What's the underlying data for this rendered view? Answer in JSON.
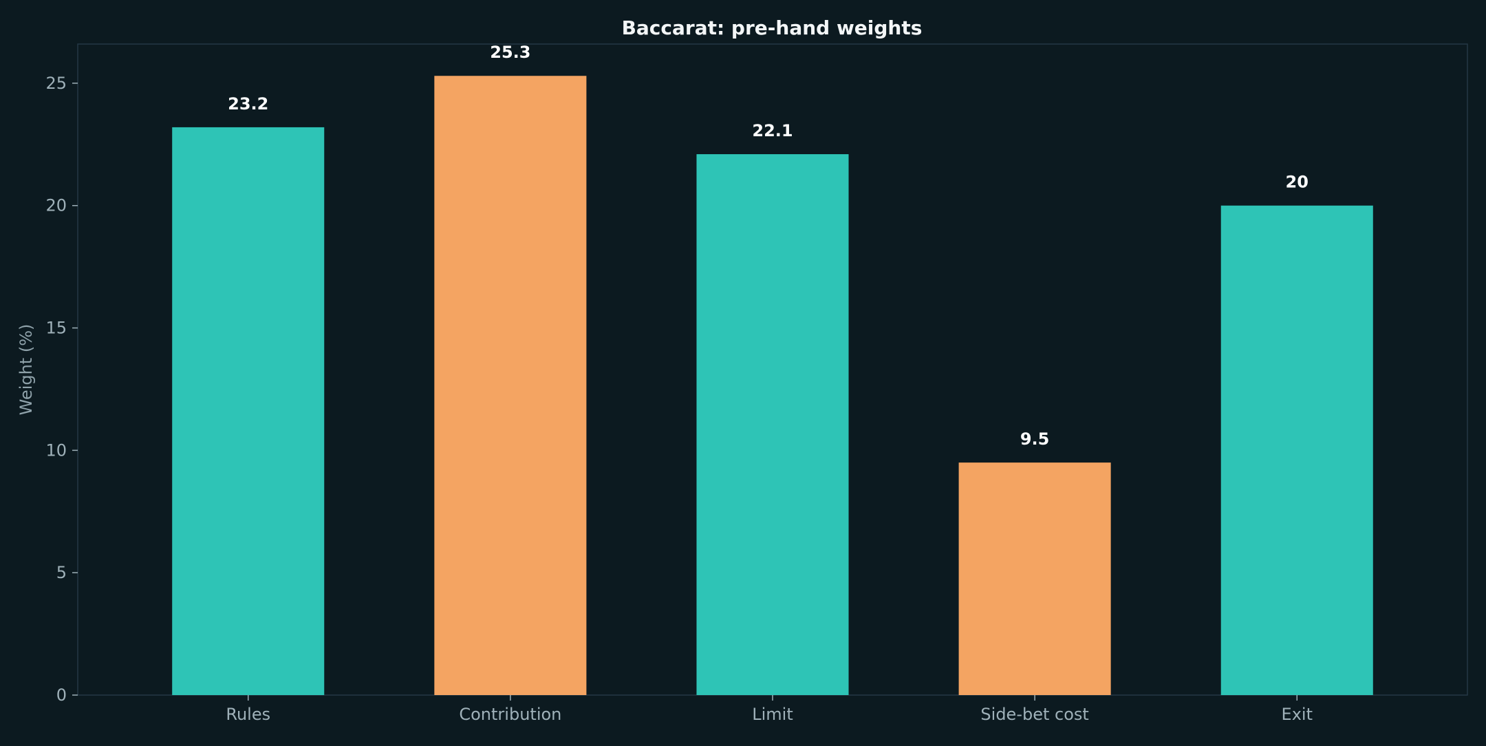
{
  "chart_data": {
    "type": "bar",
    "title": "Baccarat: pre-hand weights",
    "xlabel": "",
    "ylabel": "Weight (%)",
    "categories": [
      "Rules",
      "Contribution",
      "Limit",
      "Side-bet cost",
      "Exit"
    ],
    "values": [
      23.2,
      25.3,
      22.1,
      9.5,
      20
    ],
    "value_labels": [
      "23.2",
      "25.3",
      "22.1",
      "9.5",
      "20"
    ],
    "ylim": [
      0,
      26.6
    ],
    "yticks": [
      0,
      5,
      10,
      15,
      20,
      25
    ],
    "grid": false,
    "legend": "none",
    "bar_colors": [
      "#2ec4b6",
      "#f4a462",
      "#2ec4b6",
      "#f4a462",
      "#2ec4b6"
    ]
  },
  "colors": {
    "background": "#0c1a20",
    "plot_border": "#243845",
    "title_text": "#f3f6f7",
    "tick_text": "#9fb1b9",
    "axis_label_text": "#8fa2aa",
    "data_label_text": "#ffffff",
    "primary": "#2ec4b6",
    "accent": "#f4a462"
  }
}
